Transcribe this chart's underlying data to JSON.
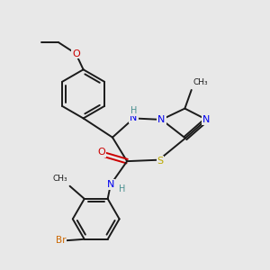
{
  "bg_color": "#e8e8e8",
  "bond_color": "#1a1a1a",
  "atom_colors": {
    "N": "#0000ee",
    "O": "#cc0000",
    "S": "#bbaa00",
    "Br": "#cc6600",
    "H": "#4a9090",
    "C": "#1a1a1a"
  },
  "lw": 1.4,
  "fs": 8.0
}
